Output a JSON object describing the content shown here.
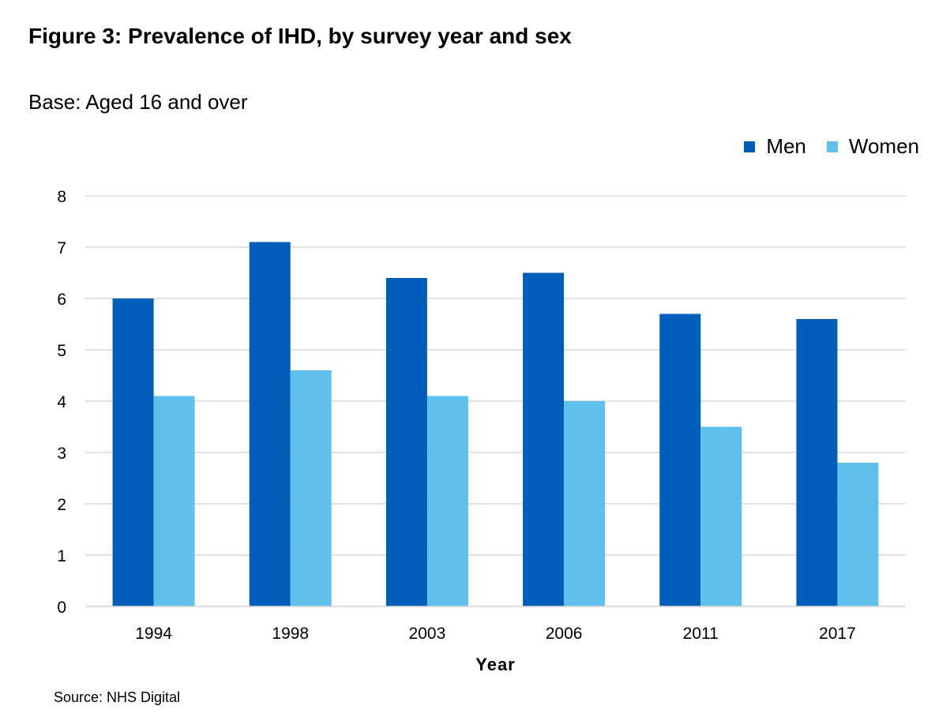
{
  "chart_data": {
    "type": "bar",
    "title": "Figure 3: Prevalence of IHD, by survey year and sex",
    "subtitle": "Base: Aged 16 and over",
    "xlabel": "Year",
    "ylabel": "",
    "categories": [
      "1994",
      "1998",
      "2003",
      "2006",
      "2011",
      "2017"
    ],
    "series": [
      {
        "name": "Men",
        "values": [
          6.0,
          7.1,
          6.4,
          6.5,
          5.7,
          5.6
        ],
        "color": "#005EB8"
      },
      {
        "name": "Women",
        "values": [
          4.1,
          4.6,
          4.1,
          4.0,
          3.5,
          2.8
        ],
        "color": "#5FC0EB"
      }
    ],
    "ylim": [
      0,
      8
    ],
    "yticks": [
      "0",
      "1",
      "2",
      "3",
      "4",
      "5",
      "6",
      "7",
      "8"
    ],
    "grid": true,
    "legend_position": "top-right",
    "source": "Source: NHS  Digital"
  }
}
